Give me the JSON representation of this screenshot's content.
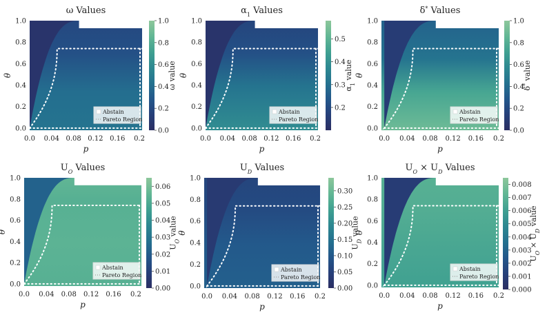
{
  "colors": {
    "colormap": [
      "#2b2e63",
      "#263f79",
      "#23568a",
      "#24708f",
      "#2d8891",
      "#3fa091",
      "#60b694",
      "#8dc79b"
    ],
    "abstain": "#ffffff",
    "pareto_line": "#ffffff"
  },
  "legend_labels": {
    "abstain": "Abstain",
    "pareto": "Pareto Region"
  },
  "chart_data": [
    {
      "type": "heatmap",
      "title": "ω Values",
      "xlabel": "p",
      "ylabel": "θ",
      "cbar_label": "ω value",
      "xticks": [
        "0.0",
        "0.04",
        "0.08",
        "0.12",
        "0.16",
        "0.2"
      ],
      "yticks": [
        "0.0",
        "0.2",
        "0.4",
        "0.6",
        "0.8",
        "1.0"
      ],
      "cbar_ticks": [
        "0.0",
        "0.2",
        "0.4",
        "0.6",
        "0.8",
        "1.0"
      ],
      "xlim": [
        0,
        0.205
      ],
      "ylim": [
        -0.02,
        1.0
      ],
      "cbar_range": [
        0,
        1.0
      ],
      "abstain_rect": {
        "p_max": 0.09,
        "theta_min": 0.93
      },
      "pareto": {
        "theta_max": 0.74
      },
      "legend_labels": [
        "Abstain",
        "Pareto Region"
      ]
    },
    {
      "type": "heatmap",
      "title": "α₁ Values",
      "xlabel": "p",
      "ylabel": "θ",
      "cbar_label": "α₁ value",
      "xticks": [
        "0.0",
        "0.04",
        "0.08",
        "0.12",
        "0.16",
        "0.2"
      ],
      "yticks": [
        "0.0",
        "0.2",
        "0.4",
        "0.6",
        "0.8",
        "1.0"
      ],
      "cbar_ticks": [
        "0.2",
        "0.3",
        "0.4",
        "0.5"
      ],
      "xlim": [
        0,
        0.205
      ],
      "ylim": [
        -0.02,
        1.0
      ],
      "cbar_range": [
        0.1,
        0.58
      ],
      "abstain_rect": {
        "p_max": 0.09,
        "theta_min": 0.93
      },
      "pareto": {
        "theta_max": 0.74
      },
      "legend_labels": [
        "Abstain",
        "Pareto Region"
      ]
    },
    {
      "type": "heatmap",
      "title": "δ* Values",
      "xlabel": "p",
      "ylabel": "θ",
      "cbar_label": "δ* value",
      "xticks": [
        "0.0",
        "0.04",
        "0.08",
        "0.12",
        "0.16",
        "0.2"
      ],
      "yticks": [
        "0.0",
        "0.2",
        "0.4",
        "0.6",
        "0.8",
        "1.0"
      ],
      "cbar_ticks": [
        "0.0",
        "0.2",
        "0.4",
        "0.6",
        "0.8",
        "1.0"
      ],
      "xlim": [
        -0.005,
        0.2
      ],
      "ylim": [
        -0.02,
        1.0
      ],
      "cbar_range": [
        0,
        1.0
      ],
      "abstain_rect": {
        "p_max": 0.09,
        "theta_min": 0.93
      },
      "pareto": {
        "theta_max": 0.74
      },
      "legend_labels": [
        "Abstain",
        "Pareto Region"
      ]
    },
    {
      "type": "heatmap",
      "title": "U_O Values",
      "xlabel": "p",
      "ylabel": "θ",
      "cbar_label": "U_O value",
      "xticks": [
        "0.0",
        "0.04",
        "0.08",
        "0.12",
        "0.16",
        "0.2"
      ],
      "yticks": [
        "0.0",
        "0.2",
        "0.4",
        "0.6",
        "0.8",
        "1.0"
      ],
      "cbar_ticks": [
        "0.00",
        "0.01",
        "0.02",
        "0.03",
        "0.04",
        "0.05",
        "0.06"
      ],
      "xlim": [
        0,
        0.21
      ],
      "ylim": [
        -0.02,
        1.0
      ],
      "cbar_range": [
        0,
        0.065
      ],
      "abstain_rect": {
        "p_max": 0.09,
        "theta_min": 0.93
      },
      "pareto": {
        "theta_max": 0.74
      },
      "legend_labels": [
        "Abstain",
        "Pareto Region"
      ]
    },
    {
      "type": "heatmap",
      "title": "U_D Values",
      "xlabel": "p",
      "ylabel": "θ",
      "cbar_label": "U_D value",
      "xticks": [
        "0.0",
        "0.04",
        "0.08",
        "0.12",
        "0.16",
        "0.2"
      ],
      "yticks": [
        "0.0",
        "0.2",
        "0.4",
        "0.6",
        "0.8",
        "1.0"
      ],
      "cbar_ticks": [
        "0.00",
        "0.05",
        "0.10",
        "0.15",
        "0.20",
        "0.25",
        "0.30"
      ],
      "xlim": [
        -0.005,
        0.2
      ],
      "ylim": [
        -0.02,
        1.0
      ],
      "cbar_range": [
        0,
        0.34
      ],
      "abstain_rect": {
        "p_max": 0.09,
        "theta_min": 0.93
      },
      "pareto": {
        "theta_max": 0.74
      },
      "legend_labels": [
        "Abstain",
        "Pareto Region"
      ]
    },
    {
      "type": "heatmap",
      "title": "U_O × U_D Values",
      "xlabel": "p",
      "ylabel": "θ",
      "cbar_label": "U_O × U_D value",
      "xticks": [
        "0.0",
        "0.04",
        "0.08",
        "0.12",
        "0.16",
        "0.2"
      ],
      "yticks": [
        "0.0",
        "0.2",
        "0.4",
        "0.6",
        "0.8",
        "1.0"
      ],
      "cbar_ticks": [
        "0.000",
        "0.001",
        "0.002",
        "0.003",
        "0.004",
        "0.005",
        "0.006",
        "0.007",
        "0.008"
      ],
      "xlim": [
        -0.005,
        0.2
      ],
      "ylim": [
        -0.02,
        1.0
      ],
      "cbar_range": [
        0,
        0.0085
      ],
      "abstain_rect": {
        "p_max": 0.09,
        "theta_min": 0.93
      },
      "pareto": {
        "theta_max": 0.74
      },
      "legend_labels": [
        "Abstain",
        "Pareto Region"
      ]
    }
  ]
}
